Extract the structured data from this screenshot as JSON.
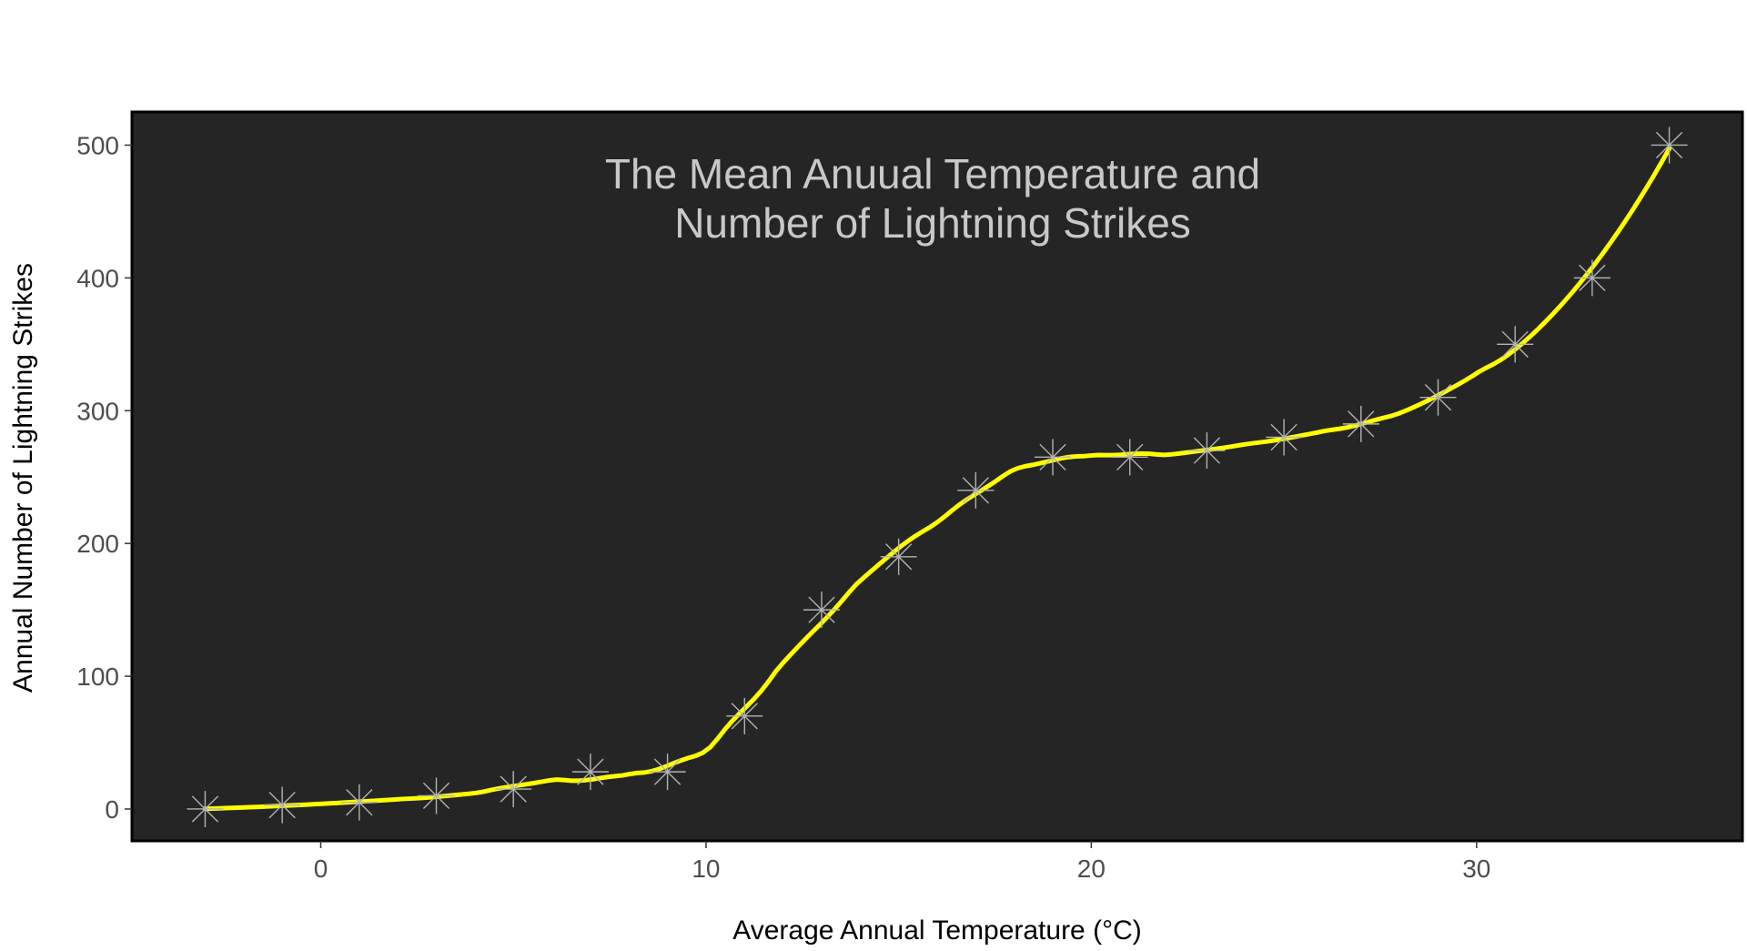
{
  "chart_data": {
    "type": "line",
    "title_lines": [
      "The Mean Anuual Temperature and",
      "Number of Lightning Strikes"
    ],
    "xlabel": "Average Annual Temperature (°C)",
    "ylabel": "Annual Number of Lightning Strikes",
    "xlim": [
      -4.9,
      36.9
    ],
    "ylim": [
      -24,
      525
    ],
    "x_ticks": [
      0,
      10,
      20,
      30
    ],
    "y_ticks": [
      0,
      100,
      200,
      300,
      400,
      500
    ],
    "grid": false,
    "legend": "none",
    "series": [
      {
        "x": [
          -3,
          -1,
          1,
          3,
          5,
          7,
          9,
          11,
          13,
          15,
          17,
          19,
          21,
          23,
          25,
          27,
          29,
          31,
          33,
          35
        ],
        "y": [
          0,
          3,
          5,
          10,
          15,
          28,
          28,
          70,
          150,
          190,
          240,
          265,
          265,
          270,
          280,
          290,
          310,
          350,
          400,
          500
        ]
      }
    ],
    "colors": {
      "panel_background": "#252525",
      "panel_border": "#000000",
      "line": "#ffff00",
      "points": "#b3b3b3"
    },
    "point_marker": "asterisk",
    "smoothing": "loess"
  }
}
